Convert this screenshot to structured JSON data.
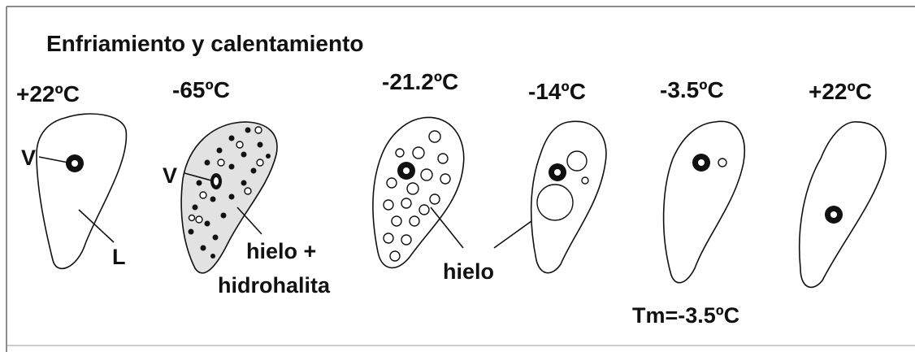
{
  "title": "Enfriamiento y calentamiento",
  "stages": [
    {
      "temperature": "+22ºC"
    },
    {
      "temperature": "-65ºC"
    },
    {
      "temperature": "-21.2ºC"
    },
    {
      "temperature": "-14ºC"
    },
    {
      "temperature": "-3.5ºC"
    },
    {
      "temperature": "+22ºC"
    }
  ],
  "labels": {
    "vapor_1": "V",
    "liquid": "L",
    "vapor_2": "V",
    "ice_hydrohalite_1": "hielo +",
    "ice_hydrohalite_2": "hidrohalita",
    "ice": "hielo",
    "melting": "Tm=-3.5ºC"
  }
}
